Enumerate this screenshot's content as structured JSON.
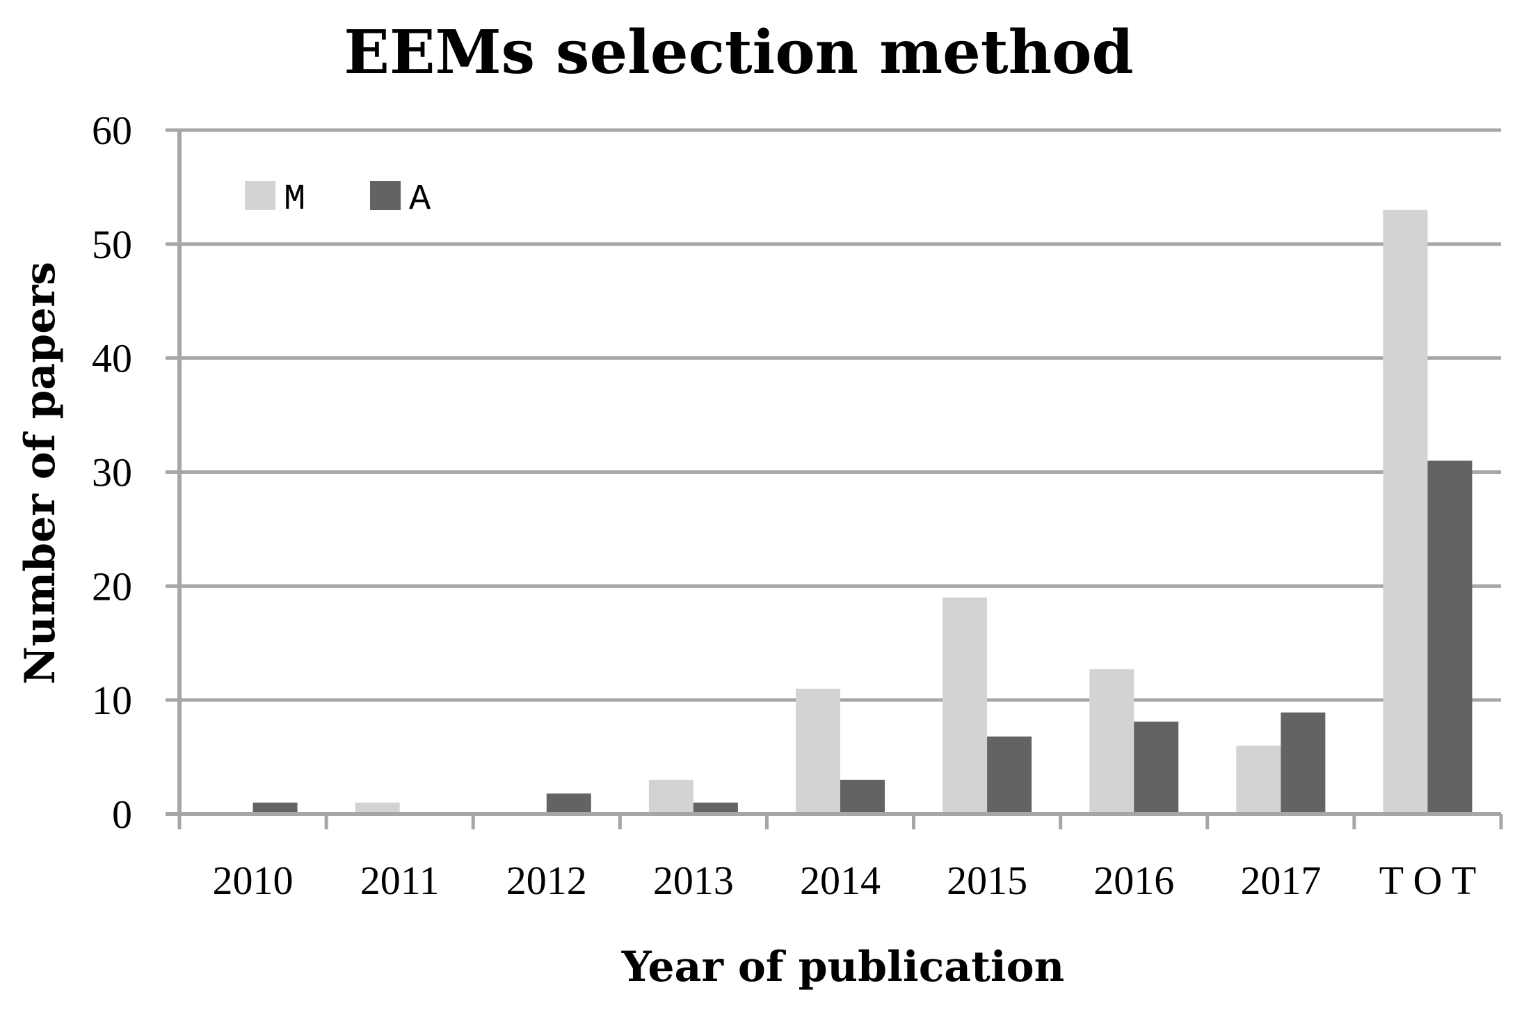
{
  "chart_data": {
    "type": "bar",
    "title": "EEMs selection method",
    "xlabel": "Year of publication",
    "ylabel": "Number of papers",
    "categories": [
      "2010",
      "2011",
      "2012",
      "2013",
      "2014",
      "2015",
      "2016",
      "2017",
      "T O T"
    ],
    "series": [
      {
        "name": "M",
        "color": "#d3d3d3",
        "values": [
          0,
          1,
          0,
          3,
          11,
          19,
          12.7,
          6,
          53
        ]
      },
      {
        "name": "A",
        "color": "#636363",
        "values": [
          1,
          0,
          1.8,
          1,
          3,
          6.8,
          8.1,
          8.9,
          31
        ]
      }
    ],
    "ylim": [
      0,
      60
    ],
    "yticks": [
      "0",
      "10",
      "20",
      "30",
      "40",
      "50",
      "60"
    ],
    "grid": true,
    "legend_position": "top-left",
    "gridline_color": "#a6a6a6"
  }
}
